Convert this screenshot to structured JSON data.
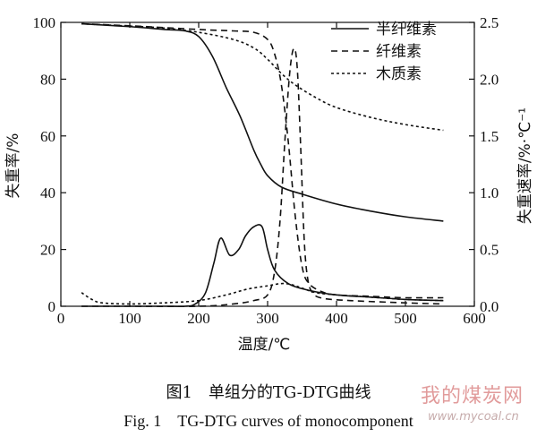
{
  "chart_data": {
    "type": "line",
    "xlabel": "温度/℃",
    "ylabel_left": "失重率/%",
    "ylabel_right": "失重速率/%·℃⁻¹",
    "xlim": [
      0,
      600
    ],
    "ylim_left": [
      0,
      100
    ],
    "ylim_right": [
      0,
      2.5
    ],
    "x_ticks": [
      "0",
      "100",
      "200",
      "300",
      "400",
      "500",
      "600"
    ],
    "y_left_ticks": [
      "0",
      "20",
      "40",
      "60",
      "80",
      "100"
    ],
    "y_right_ticks": [
      "0.0",
      "0.5",
      "1.0",
      "1.5",
      "2.0",
      "2.5"
    ],
    "legend_position": "top-right",
    "grid": false,
    "series": [
      {
        "name": "半纤维素",
        "style": "solid",
        "axis": "left",
        "kind": "TG",
        "x": [
          30,
          100,
          150,
          180,
          200,
          220,
          240,
          260,
          280,
          290,
          300,
          320,
          350,
          400,
          450,
          500,
          555
        ],
        "y": [
          99.5,
          98.5,
          97.5,
          97.0,
          95.0,
          88.0,
          77.0,
          67.0,
          55.0,
          50.0,
          46.0,
          42.0,
          39.5,
          36.0,
          33.5,
          31.5,
          30.0
        ]
      },
      {
        "name": "半纤维素",
        "style": "solid",
        "axis": "right",
        "kind": "DTG",
        "x": [
          30,
          100,
          150,
          180,
          195,
          210,
          222,
          232,
          245,
          258,
          268,
          280,
          292,
          300,
          310,
          330,
          360,
          400,
          450,
          500,
          555
        ],
        "y": [
          0.0,
          0.0,
          0.0,
          0.0,
          0.02,
          0.12,
          0.38,
          0.6,
          0.45,
          0.5,
          0.62,
          0.7,
          0.7,
          0.5,
          0.32,
          0.2,
          0.14,
          0.1,
          0.08,
          0.06,
          0.05
        ]
      },
      {
        "name": "纤维素",
        "style": "dashed",
        "axis": "left",
        "kind": "TG",
        "x": [
          30,
          100,
          200,
          250,
          280,
          300,
          310,
          320,
          330,
          340,
          350,
          360,
          380,
          400,
          450,
          500,
          555
        ],
        "y": [
          99.5,
          98.8,
          97.5,
          97.0,
          96.5,
          94.0,
          89.0,
          78.0,
          58.0,
          32.0,
          14.0,
          8.0,
          5.0,
          4.0,
          3.5,
          3.0,
          3.0
        ]
      },
      {
        "name": "纤维素",
        "style": "dashed",
        "axis": "right",
        "kind": "DTG",
        "x": [
          30,
          100,
          200,
          250,
          280,
          300,
          310,
          318,
          325,
          332,
          338,
          343,
          348,
          353,
          358,
          365,
          380,
          420,
          500,
          555
        ],
        "y": [
          0.0,
          0.0,
          0.0,
          0.02,
          0.05,
          0.1,
          0.3,
          0.75,
          1.45,
          2.05,
          2.27,
          2.1,
          1.4,
          0.6,
          0.25,
          0.12,
          0.07,
          0.05,
          0.03,
          0.02
        ]
      },
      {
        "name": "木质素",
        "style": "dotted",
        "axis": "left",
        "kind": "TG",
        "x": [
          30,
          100,
          150,
          200,
          250,
          280,
          300,
          320,
          340,
          370,
          400,
          450,
          500,
          555
        ],
        "y": [
          99.5,
          98.7,
          98.0,
          96.5,
          94.0,
          91.0,
          87.0,
          82.0,
          78.0,
          73.5,
          70.0,
          66.5,
          64.0,
          62.0
        ]
      },
      {
        "name": "木质素",
        "style": "dotted",
        "axis": "right",
        "kind": "DTG",
        "x": [
          30,
          45,
          60,
          100,
          150,
          200,
          240,
          270,
          300,
          320,
          335,
          350,
          370,
          400,
          450,
          500,
          555
        ],
        "y": [
          0.12,
          0.06,
          0.03,
          0.02,
          0.03,
          0.05,
          0.1,
          0.15,
          0.18,
          0.2,
          0.19,
          0.16,
          0.12,
          0.1,
          0.08,
          0.06,
          0.05
        ]
      }
    ]
  },
  "legend": [
    {
      "label": "半纤维素",
      "style": "solid"
    },
    {
      "label": "纤维素",
      "style": "dashed"
    },
    {
      "label": "木质素",
      "style": "dotted"
    }
  ],
  "caption": {
    "cn": "图1　单组分的TG-DTG曲线",
    "en": "Fig. 1　TG-DTG curves of monocomponent"
  },
  "watermark": {
    "cn": "我的煤炭网",
    "url": "www.mycoal.cn"
  }
}
